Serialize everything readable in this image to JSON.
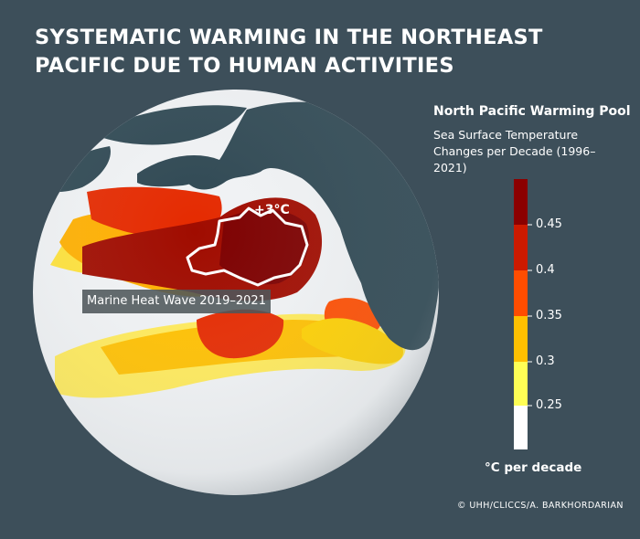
{
  "title": "SYSTEMATIC WARMING IN THE NORTHEAST PACIFIC DUE TO HUMAN ACTIVITIES",
  "legend": {
    "title": "North Pacific Warming Pool",
    "subtitle": "Sea Surface Temperature Changes per Decade (1996–2021)",
    "unit": "°C per decade",
    "ticks": [
      "0.45",
      "0.4",
      "0.35",
      "0.3",
      "0.25"
    ],
    "colors": [
      "#8b0000",
      "#cc1a00",
      "#ff4d00",
      "#ffc000",
      "#ffff55",
      "#ffffff"
    ]
  },
  "map": {
    "heatwave_label": "Marine Heat Wave 2019–2021",
    "heatwave_value": "+3°C",
    "land_color": "#2e4752",
    "ocean_color": "#f0f2f4"
  },
  "copyright": "© UHH/CLICCS/A. BARKHORDARIAN"
}
